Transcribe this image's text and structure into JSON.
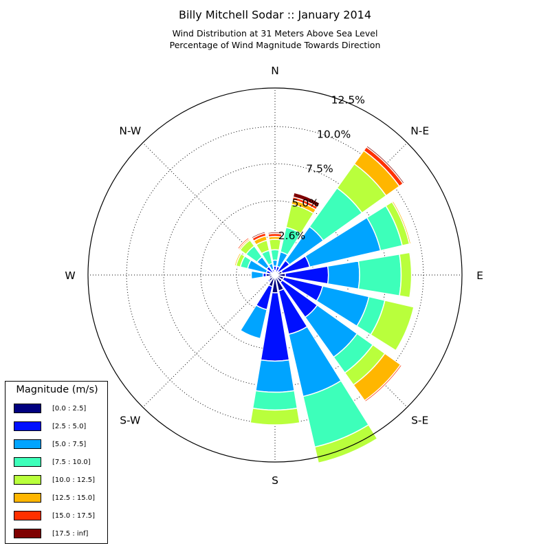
{
  "title": "Billy Mitchell Sodar :: January 2014",
  "subtitle_line1": "Wind Distribution at 31 Meters Above Sea Level",
  "subtitle_line2": "Percentage of Wind Magnitude Towards Direction",
  "legend": {
    "title": "Magnitude (m/s)",
    "items": [
      {
        "label": "[0.0 : 2.5]",
        "color": "#00007f"
      },
      {
        "label": "[2.5 : 5.0]",
        "color": "#0010ff"
      },
      {
        "label": "[5.0 : 7.5]",
        "color": "#00a4ff"
      },
      {
        "label": "[7.5 : 10.0]",
        "color": "#3dffba"
      },
      {
        "label": "[10.0 : 12.5]",
        "color": "#b9ff3c"
      },
      {
        "label": "[12.5 : 15.0]",
        "color": "#ffb600"
      },
      {
        "label": "[15.0 : 17.5]",
        "color": "#ff3000"
      },
      {
        "label": "[17.5 : inf]",
        "color": "#7f0000"
      }
    ]
  },
  "chart_data": {
    "type": "windrose",
    "title": "Billy Mitchell Sodar :: January 2014",
    "direction_labels": [
      "N",
      "N-E",
      "E",
      "S-E",
      "S",
      "S-W",
      "W",
      "N-W"
    ],
    "radial_ticks": [
      2.6,
      5.0,
      7.5,
      10.0,
      12.5
    ],
    "radial_tick_labels": [
      "2.6%",
      "5.0%",
      "7.5%",
      "10.0%",
      "12.5%"
    ],
    "rmax": 12.6,
    "bins": [
      "[0.0 : 2.5]",
      "[2.5 : 5.0]",
      "[5.0 : 7.5]",
      "[7.5 : 10.0]",
      "[10.0 : 12.5]",
      "[12.5 : 15.0]",
      "[15.0 : 17.5]",
      "[17.5 : inf]"
    ],
    "sectors": [
      {
        "direction_deg": 0,
        "cumulative": [
          0.3,
          0.6,
          1.0,
          1.7,
          2.4,
          2.6,
          2.8,
          2.9
        ]
      },
      {
        "direction_deg": 22.5,
        "cumulative": [
          0.2,
          0.6,
          1.6,
          3.3,
          4.9,
          5.2,
          5.4,
          5.7
        ]
      },
      {
        "direction_deg": 45,
        "cumulative": [
          0.3,
          1.2,
          4.0,
          7.2,
          9.2,
          10.3,
          10.6,
          10.7
        ]
      },
      {
        "direction_deg": 67.5,
        "cumulative": [
          0.5,
          2.4,
          7.3,
          8.8,
          9.3,
          9.4,
          9.4,
          9.4
        ]
      },
      {
        "direction_deg": 90,
        "cumulative": [
          0.7,
          3.6,
          5.7,
          8.5,
          9.2,
          9.2,
          9.2,
          9.2
        ]
      },
      {
        "direction_deg": 112.5,
        "cumulative": [
          0.6,
          3.3,
          6.5,
          7.6,
          9.6,
          9.6,
          9.6,
          9.6
        ]
      },
      {
        "direction_deg": 135,
        "cumulative": [
          0.6,
          3.5,
          6.8,
          8.1,
          9.1,
          10.4,
          10.5,
          10.5
        ]
      },
      {
        "direction_deg": 157.5,
        "cumulative": [
          1.1,
          4.1,
          8.4,
          11.9,
          13.0,
          13.0,
          13.0,
          13.0
        ]
      },
      {
        "direction_deg": 180,
        "cumulative": [
          1.2,
          5.8,
          7.9,
          9.1,
          10.1,
          10.1,
          10.1,
          10.1
        ]
      },
      {
        "direction_deg": 202.5,
        "cumulative": [
          0.8,
          2.4,
          4.4,
          4.4,
          4.4,
          4.4,
          4.4,
          4.4
        ]
      },
      {
        "direction_deg": 225,
        "cumulative": [
          0.5,
          0.6,
          0.6,
          0.6,
          0.6,
          0.6,
          0.6,
          0.6
        ]
      },
      {
        "direction_deg": 247.5,
        "cumulative": [
          0.4,
          0.4,
          0.4,
          0.4,
          0.4,
          0.4,
          0.4,
          0.4
        ]
      },
      {
        "direction_deg": 270,
        "cumulative": [
          0.6,
          0.8,
          1.6,
          1.6,
          1.6,
          1.6,
          1.6,
          1.6
        ]
      },
      {
        "direction_deg": 292.5,
        "cumulative": [
          0.3,
          0.6,
          1.9,
          2.4,
          2.7,
          2.8,
          2.8,
          2.8
        ]
      },
      {
        "direction_deg": 315,
        "cumulative": [
          0.2,
          0.7,
          1.5,
          2.4,
          2.9,
          3.0,
          3.1,
          3.1
        ]
      },
      {
        "direction_deg": 337.5,
        "cumulative": [
          0.1,
          0.4,
          0.8,
          1.7,
          2.4,
          2.7,
          2.9,
          3.0
        ]
      }
    ]
  }
}
